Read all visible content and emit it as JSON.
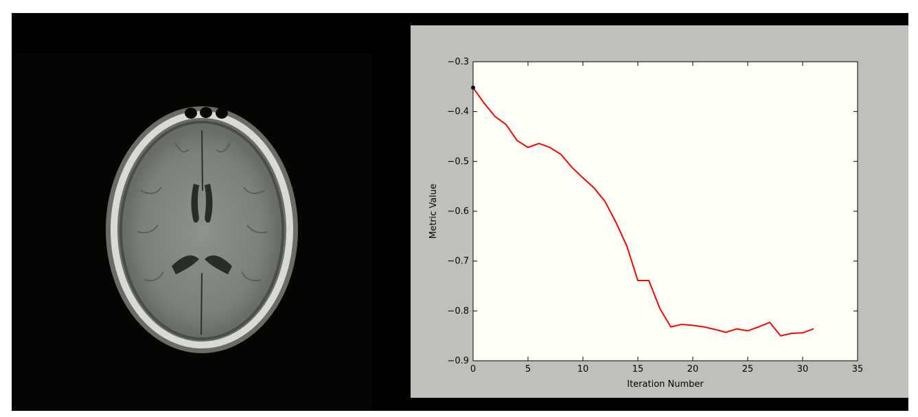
{
  "chart_data": {
    "type": "line",
    "title": "",
    "xlabel": "Iteration Number",
    "ylabel": "Metric Value",
    "xlim": [
      0,
      35
    ],
    "ylim": [
      -0.9,
      -0.3
    ],
    "xticks": [
      "0",
      "5",
      "10",
      "15",
      "20",
      "25",
      "30",
      "35"
    ],
    "yticks": [
      "−0.3",
      "−0.4",
      "−0.5",
      "−0.6",
      "−0.7",
      "−0.8",
      "−0.9"
    ],
    "grid": false,
    "series": [
      {
        "x": [
          0,
          1,
          2,
          3,
          4,
          5,
          6,
          7,
          8,
          9,
          10,
          11,
          12,
          13,
          14,
          15,
          16,
          17,
          18,
          19,
          20,
          21,
          22,
          23,
          24,
          25,
          26,
          27,
          28,
          29,
          30,
          31
        ],
        "values": [
          -0.352,
          -0.383,
          -0.41,
          -0.426,
          -0.458,
          -0.472,
          -0.464,
          -0.472,
          -0.486,
          -0.512,
          -0.533,
          -0.553,
          -0.58,
          -0.622,
          -0.67,
          -0.739,
          -0.739,
          -0.795,
          -0.832,
          -0.827,
          -0.829,
          -0.832,
          -0.837,
          -0.843,
          -0.836,
          -0.84,
          -0.832,
          -0.823,
          -0.85,
          -0.845,
          -0.844,
          -0.836
        ],
        "color": "#ff0000"
      }
    ],
    "start_marker": {
      "x": 0,
      "y": -0.352,
      "color": "#000033"
    }
  },
  "colors": {
    "page_background": "#ffffff",
    "viewer_background": "#000000",
    "plot_background": "#fffff8",
    "plot_panel_background": "#bfc0bc"
  }
}
